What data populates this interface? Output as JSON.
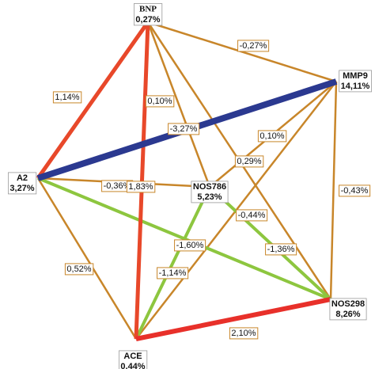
{
  "nodes": [
    {
      "name": "BNP",
      "value": "0,27%"
    },
    {
      "name": "MMP9",
      "value": "14,11%"
    },
    {
      "name": "A2",
      "value": "3,27%"
    },
    {
      "name": "NOS786",
      "value": "5,23%"
    },
    {
      "name": "NOS298",
      "value": "8,26%"
    },
    {
      "name": "ACE",
      "value": "0,44%"
    }
  ],
  "edges": [
    {
      "from": "BNP",
      "to": "MMP9",
      "label": "-0,27%",
      "color": "#c8862a"
    },
    {
      "from": "BNP",
      "to": "NOS786",
      "label": "0,10%",
      "color": "#c8862a"
    },
    {
      "from": "BNP",
      "to": "NOS298",
      "label": "0,29%",
      "color": "#c8862a"
    },
    {
      "from": "MMP9",
      "to": "NOS786",
      "label": "0,10%",
      "color": "#c8862a"
    },
    {
      "from": "MMP9",
      "to": "ACE",
      "label": "-0,44%",
      "color": "#c8862a"
    },
    {
      "from": "MMP9",
      "to": "NOS298",
      "label": "-0,43%",
      "color": "#c8862a"
    },
    {
      "from": "A2",
      "to": "NOS786",
      "label": "-0,36%",
      "color": "#c8862a"
    },
    {
      "from": "A2",
      "to": "ACE",
      "label": "0,52%",
      "color": "#c8862a"
    },
    {
      "from": "A2",
      "to": "NOS298",
      "label": "-1,60%",
      "color": "#8dc63f"
    },
    {
      "from": "NOS786",
      "to": "NOS298",
      "label": "-1,36%",
      "color": "#8dc63f"
    },
    {
      "from": "NOS786",
      "to": "ACE",
      "label": "-1,14%",
      "color": "#8dc63f"
    },
    {
      "from": "BNP",
      "to": "A2",
      "label": "1,14%",
      "color": "#e8482a"
    },
    {
      "from": "BNP",
      "to": "ACE",
      "label": "1,83%",
      "color": "#e8482a"
    },
    {
      "from": "ACE",
      "to": "NOS298",
      "label": "2,10%",
      "color": "#e8302a"
    },
    {
      "from": "A2",
      "to": "MMP9",
      "label": "-3,27%",
      "color": "#2b3990"
    }
  ]
}
